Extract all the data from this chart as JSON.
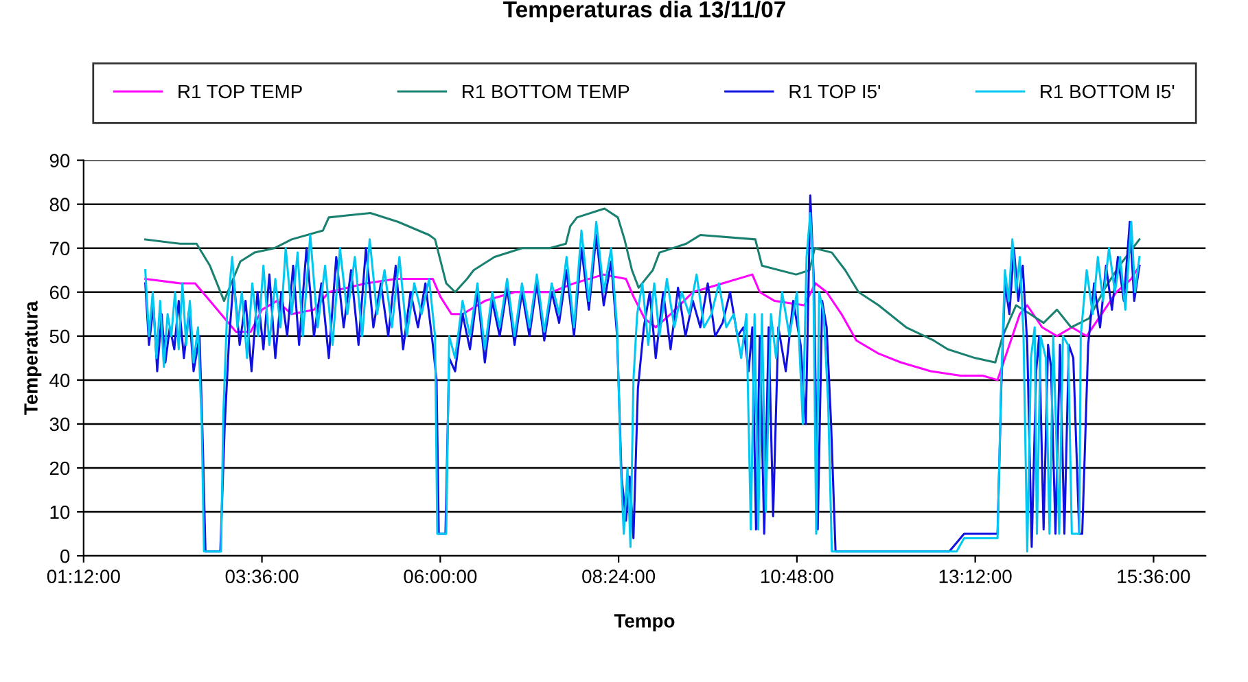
{
  "chart_data": {
    "type": "line",
    "title": "Temperaturas dia 13/11/07",
    "xlabel": "Tempo",
    "ylabel": "Temperatura",
    "xlim": [
      1.2,
      16.3
    ],
    "xticks": [
      {
        "value": 1.2,
        "label": "01:12:00"
      },
      {
        "value": 3.6,
        "label": "03:36:00"
      },
      {
        "value": 6.0,
        "label": "06:00:00"
      },
      {
        "value": 8.4,
        "label": "08:24:00"
      },
      {
        "value": 10.8,
        "label": "10:48:00"
      },
      {
        "value": 13.2,
        "label": "13:12:00"
      },
      {
        "value": 15.6,
        "label": "15:36:00"
      }
    ],
    "ylim": [
      0,
      90
    ],
    "yticks": [
      0,
      10,
      20,
      30,
      40,
      50,
      60,
      70,
      80,
      90
    ],
    "grid": "y",
    "legend": "top",
    "line_style": "solid",
    "marker": "none",
    "series": [
      {
        "name": "R1 TOP TEMP",
        "color": "#ff00ff",
        "x": [
          2.03,
          2.5,
          2.7,
          2.9,
          3.1,
          3.25,
          3.45,
          3.6,
          3.8,
          4.0,
          4.3,
          4.5,
          5.0,
          5.4,
          5.9,
          6.0,
          6.15,
          6.3,
          6.6,
          7.0,
          7.5,
          7.8,
          8.2,
          8.5,
          8.6,
          8.75,
          8.9,
          9.1,
          9.4,
          9.8,
          10.2,
          10.3,
          10.5,
          10.9,
          11.05,
          11.2,
          11.4,
          11.6,
          11.9,
          12.2,
          12.6,
          13.0,
          13.3,
          13.5,
          13.6,
          13.8,
          13.9,
          14.1,
          14.3,
          14.5,
          14.7,
          14.9,
          15.1,
          15.3,
          15.41
        ],
        "values": [
          63,
          62,
          62,
          58,
          54,
          51,
          51,
          56,
          58,
          55,
          56,
          60,
          62,
          63,
          63,
          59,
          55,
          55,
          58,
          60,
          60,
          62,
          64,
          63,
          59,
          54,
          52,
          55,
          60,
          62,
          64,
          60,
          58,
          57,
          62,
          60,
          55,
          49,
          46,
          44,
          42,
          41,
          41,
          40,
          45,
          55,
          57,
          52,
          50,
          52,
          50,
          55,
          60,
          63,
          66
        ]
      },
      {
        "name": "R1 BOTTOM TEMP",
        "color": "#1a8070",
        "x": [
          2.03,
          2.5,
          2.72,
          2.9,
          3.09,
          3.31,
          3.5,
          3.77,
          4.0,
          4.42,
          4.5,
          5.06,
          5.43,
          5.85,
          5.93,
          6.08,
          6.2,
          6.36,
          6.45,
          6.73,
          7.1,
          7.47,
          7.69,
          7.75,
          7.84,
          8.21,
          8.39,
          8.48,
          8.58,
          8.67,
          8.86,
          8.95,
          9.31,
          9.5,
          10.24,
          10.33,
          10.79,
          10.97,
          11.04,
          11.27,
          11.45,
          11.63,
          11.9,
          12.27,
          12.64,
          12.83,
          13.2,
          13.47,
          13.57,
          13.75,
          13.94,
          14.12,
          14.3,
          14.49,
          14.73,
          14.95,
          15.14,
          15.23,
          15.41
        ],
        "values": [
          72,
          71,
          71,
          66,
          58,
          67,
          69,
          70,
          72,
          74,
          77,
          78,
          76,
          73,
          72,
          62,
          60,
          63,
          65,
          68,
          70,
          70,
          71,
          75,
          77,
          79,
          77,
          72,
          65,
          61,
          65,
          69,
          71,
          73,
          72,
          66,
          64,
          65,
          70,
          69,
          65,
          60,
          57,
          52,
          49,
          47,
          45,
          44,
          50,
          57,
          55,
          53,
          56,
          52,
          54,
          61,
          66,
          68,
          72
        ]
      },
      {
        "name": "R1 TOP I5'",
        "color": "#1010e0",
        "x": [
          2.03,
          2.08,
          2.14,
          2.19,
          2.25,
          2.3,
          2.36,
          2.42,
          2.48,
          2.55,
          2.62,
          2.68,
          2.76,
          2.8,
          2.84,
          3.04,
          3.1,
          3.16,
          3.22,
          3.3,
          3.38,
          3.46,
          3.54,
          3.62,
          3.7,
          3.78,
          3.86,
          3.94,
          4.02,
          4.1,
          4.2,
          4.3,
          4.4,
          4.5,
          4.6,
          4.7,
          4.8,
          4.9,
          5.0,
          5.1,
          5.2,
          5.3,
          5.4,
          5.5,
          5.6,
          5.7,
          5.8,
          5.9,
          5.95,
          5.98,
          6.07,
          6.12,
          6.2,
          6.3,
          6.4,
          6.5,
          6.6,
          6.7,
          6.8,
          6.9,
          7.0,
          7.1,
          7.2,
          7.3,
          7.4,
          7.5,
          7.6,
          7.7,
          7.8,
          7.9,
          8.0,
          8.1,
          8.2,
          8.3,
          8.38,
          8.44,
          8.5,
          8.55,
          8.6,
          8.66,
          8.74,
          8.82,
          8.9,
          9.0,
          9.1,
          9.2,
          9.3,
          9.4,
          9.5,
          9.6,
          9.7,
          9.8,
          9.9,
          10.0,
          10.08,
          10.15,
          10.2,
          10.25,
          10.3,
          10.36,
          10.42,
          10.48,
          10.55,
          10.65,
          10.75,
          10.85,
          10.92,
          10.98,
          11.03,
          11.08,
          11.14,
          11.2,
          11.26,
          11.32,
          12.85,
          12.95,
          13.05,
          13.5,
          13.55,
          13.6,
          13.66,
          13.72,
          13.78,
          13.84,
          13.9,
          13.96,
          14.02,
          14.06,
          14.12,
          14.18,
          14.22,
          14.28,
          14.34,
          14.4,
          14.46,
          14.52,
          14.6,
          14.64,
          14.72,
          14.8,
          14.88,
          14.96,
          15.04,
          15.12,
          15.2,
          15.28,
          15.34,
          15.41
        ],
        "values": [
          62,
          48,
          57,
          42,
          55,
          44,
          52,
          47,
          58,
          45,
          56,
          42,
          50,
          28,
          1,
          1,
          30,
          50,
          63,
          48,
          58,
          42,
          60,
          47,
          64,
          45,
          60,
          50,
          66,
          48,
          70,
          50,
          62,
          45,
          68,
          52,
          65,
          48,
          70,
          52,
          62,
          50,
          66,
          47,
          60,
          52,
          62,
          48,
          40,
          5,
          5,
          45,
          42,
          55,
          47,
          60,
          44,
          58,
          50,
          61,
          48,
          60,
          50,
          62,
          49,
          60,
          53,
          65,
          50,
          70,
          56,
          73,
          57,
          67,
          50,
          18,
          8,
          18,
          4,
          38,
          52,
          60,
          45,
          60,
          47,
          61,
          50,
          58,
          52,
          62,
          50,
          53,
          60,
          50,
          52,
          42,
          52,
          6,
          50,
          5,
          52,
          9,
          52,
          42,
          58,
          48,
          30,
          82,
          62,
          6,
          58,
          52,
          30,
          1,
          1,
          3,
          5,
          5,
          38,
          62,
          55,
          70,
          58,
          66,
          48,
          2,
          42,
          50,
          6,
          48,
          43,
          5,
          48,
          5,
          48,
          45,
          5,
          5,
          48,
          62,
          52,
          66,
          56,
          68,
          58,
          76,
          58,
          66
        ]
      },
      {
        "name": "R1 BOTTOM I5'",
        "color": "#00c8f0",
        "x": [
          2.03,
          2.08,
          2.13,
          2.18,
          2.23,
          2.28,
          2.33,
          2.38,
          2.43,
          2.48,
          2.53,
          2.58,
          2.63,
          2.68,
          2.74,
          2.79,
          2.82,
          3.05,
          3.08,
          3.13,
          3.2,
          3.27,
          3.33,
          3.4,
          3.47,
          3.55,
          3.62,
          3.7,
          3.78,
          3.85,
          3.92,
          4.0,
          4.08,
          4.15,
          4.25,
          4.35,
          4.45,
          4.55,
          4.65,
          4.75,
          4.85,
          4.95,
          5.05,
          5.15,
          5.25,
          5.35,
          5.45,
          5.55,
          5.65,
          5.75,
          5.85,
          5.93,
          5.96,
          6.08,
          6.12,
          6.2,
          6.3,
          6.4,
          6.5,
          6.6,
          6.7,
          6.8,
          6.9,
          7.0,
          7.1,
          7.2,
          7.3,
          7.4,
          7.5,
          7.6,
          7.7,
          7.8,
          7.9,
          8.0,
          8.1,
          8.2,
          8.3,
          8.38,
          8.43,
          8.47,
          8.52,
          8.56,
          8.6,
          8.65,
          8.72,
          8.8,
          8.88,
          8.95,
          9.05,
          9.15,
          9.25,
          9.35,
          9.45,
          9.55,
          9.65,
          9.75,
          9.85,
          9.95,
          10.05,
          10.12,
          10.18,
          10.23,
          10.28,
          10.33,
          10.38,
          10.45,
          10.52,
          10.6,
          10.7,
          10.8,
          10.88,
          10.93,
          10.98,
          11.02,
          11.06,
          11.1,
          11.16,
          11.22,
          11.27,
          12.95,
          13.05,
          13.5,
          13.55,
          13.6,
          13.65,
          13.7,
          13.75,
          13.8,
          13.85,
          13.9,
          13.95,
          14.0,
          14.03,
          14.08,
          14.15,
          14.2,
          14.25,
          14.33,
          14.38,
          14.45,
          14.5,
          14.6,
          14.62,
          14.7,
          14.78,
          14.85,
          14.92,
          15.0,
          15.08,
          15.15,
          15.22,
          15.3,
          15.35,
          15.41
        ],
        "values": [
          65,
          50,
          60,
          45,
          58,
          43,
          55,
          50,
          60,
          47,
          62,
          48,
          58,
          44,
          52,
          30,
          1,
          1,
          32,
          55,
          68,
          52,
          60,
          45,
          62,
          50,
          66,
          48,
          63,
          52,
          70,
          55,
          69,
          50,
          73,
          52,
          66,
          48,
          70,
          55,
          68,
          50,
          72,
          55,
          65,
          52,
          68,
          50,
          62,
          55,
          63,
          50,
          5,
          5,
          50,
          45,
          58,
          50,
          62,
          47,
          60,
          52,
          63,
          50,
          62,
          52,
          64,
          51,
          62,
          55,
          68,
          52,
          74,
          58,
          76,
          60,
          70,
          52,
          20,
          5,
          20,
          2,
          40,
          55,
          62,
          48,
          62,
          50,
          63,
          52,
          60,
          55,
          64,
          52,
          55,
          62,
          52,
          55,
          45,
          55,
          6,
          55,
          6,
          55,
          10,
          55,
          45,
          60,
          50,
          60,
          30,
          68,
          78,
          65,
          5,
          60,
          55,
          35,
          1,
          1,
          4,
          4,
          40,
          65,
          58,
          72,
          60,
          68,
          50,
          1,
          45,
          52,
          5,
          50,
          45,
          5,
          50,
          5,
          50,
          48,
          5,
          5,
          50,
          65,
          55,
          68,
          58,
          70,
          60,
          68,
          56,
          76,
          60,
          68
        ]
      }
    ]
  }
}
